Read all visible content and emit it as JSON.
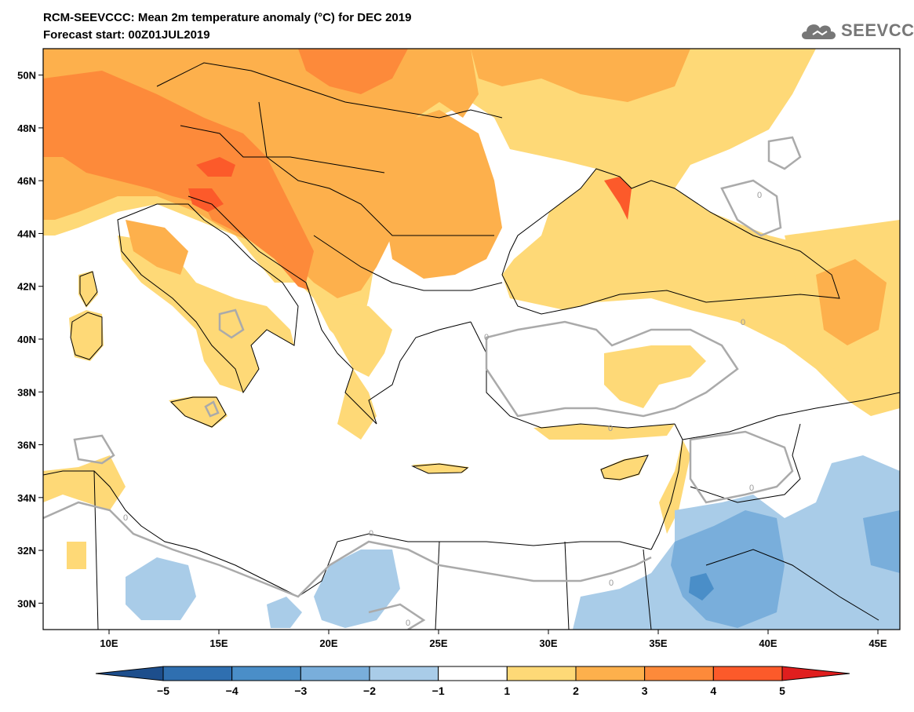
{
  "header": {
    "title_line1": "RCM-SEEVCCC: Mean 2m temperature anomaly (°C) for DEC 2019",
    "title_line2": "Forecast start: 00Z01JUL2019"
  },
  "logo": {
    "text": "SEEVCCC",
    "icon": "cloud-icon"
  },
  "map": {
    "lon_range": [
      7,
      46
    ],
    "lat_range": [
      29,
      51
    ],
    "lat_labels": [
      "50N",
      "48N",
      "46N",
      "44N",
      "42N",
      "40N",
      "38N",
      "36N",
      "34N",
      "32N",
      "30N"
    ],
    "lat_values": [
      50,
      48,
      46,
      44,
      42,
      40,
      38,
      36,
      34,
      32,
      30
    ],
    "lon_labels": [
      "10E",
      "15E",
      "20E",
      "25E",
      "30E",
      "35E",
      "40E",
      "45E"
    ],
    "lon_values": [
      10,
      15,
      20,
      25,
      30,
      35,
      40,
      45
    ],
    "zero_contour_label": "0"
  },
  "colorbar": {
    "labels": [
      "−5",
      "−4",
      "−3",
      "−2",
      "−1",
      "1",
      "2",
      "3",
      "4",
      "5"
    ],
    "colors": [
      "#1d4e8c",
      "#2f6fb0",
      "#4a8ec8",
      "#79aedb",
      "#a9cce8",
      "#ffffff",
      "#fed977",
      "#fdb04c",
      "#fd8a3a",
      "#fc5a2a",
      "#e01e1e"
    ]
  }
}
